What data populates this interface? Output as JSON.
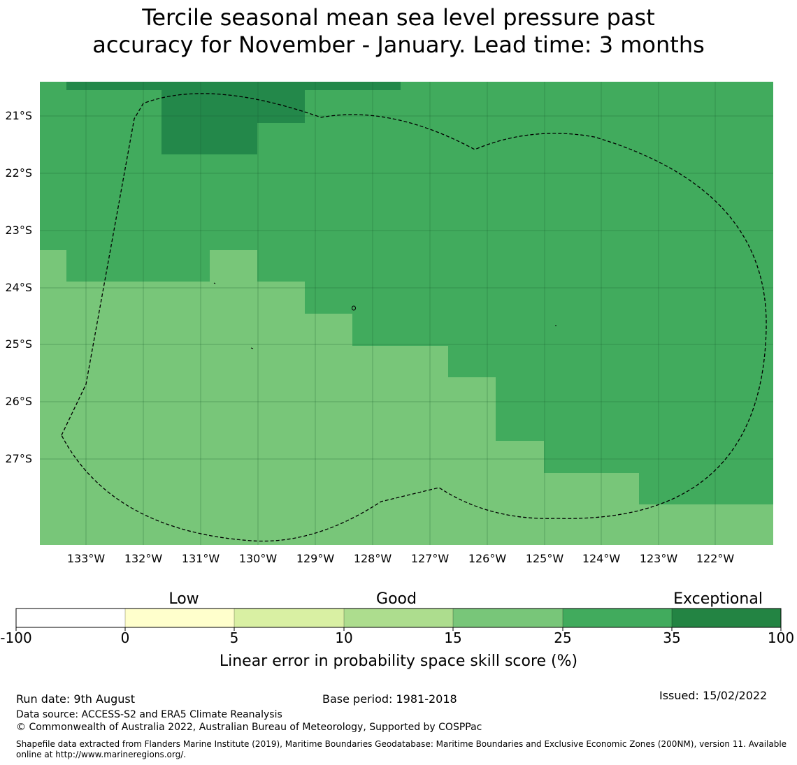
{
  "title_line1": "Tercile seasonal mean sea level pressure past",
  "title_line2": "accuracy for November - January. Lead time: 3 months",
  "map": {
    "lon_labels": [
      "133°W",
      "132°W",
      "131°W",
      "130°W",
      "129°W",
      "128°W",
      "127°W",
      "126°W",
      "125°W",
      "124°W",
      "123°W",
      "122°W"
    ],
    "lat_labels": [
      "21°S",
      "22°S",
      "23°S",
      "24°S",
      "25°S",
      "26°S",
      "27°S"
    ],
    "colors": {
      "dark": "#23884a",
      "mid": "#41ab5d",
      "light": "#78c679"
    }
  },
  "colorbar": {
    "category_labels": [
      "Low",
      "Good",
      "Exceptional"
    ],
    "tick_labels": [
      "-100",
      "0",
      "5",
      "10",
      "15",
      "25",
      "35",
      "100"
    ],
    "colors": [
      "#ffffff",
      "#ffffcc",
      "#d9f0a3",
      "#addd8e",
      "#78c679",
      "#41ab5d",
      "#238443"
    ],
    "title": "Linear error in probability space skill score (%)"
  },
  "footer": {
    "run_date": "Run date: 9th August",
    "base_period": "Base period: 1981-2018",
    "issued": "Issued: 15/02/2022",
    "data_source": "Data source: ACCESS-S2 and ERA5 Climate Reanalysis",
    "copyright": "© Commonwealth of Australia 2022, Australian Bureau of Meteorology, Supported by COSPPac",
    "shapefile": "Shapefile data extracted from Flanders Marine Institute (2019), Maritime Boundaries Geodatabase: Maritime Boundaries and Exclusive Economic Zones (200NM), version 11. Available online at http://www.marineregions.org/."
  }
}
